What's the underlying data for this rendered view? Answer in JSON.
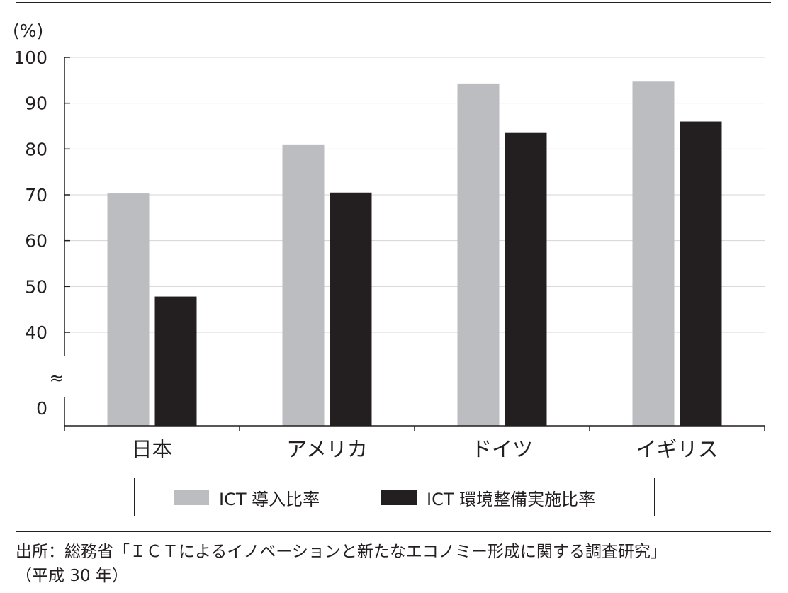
{
  "chart_data": {
    "type": "bar",
    "unit_label": "(%)",
    "categories": [
      "日本",
      "アメリカ",
      "ドイツ",
      "イギリス"
    ],
    "series": [
      {
        "name": "ICT 導入比率",
        "color": "#bcbdc0",
        "values": [
          70.3,
          81.0,
          94.3,
          94.7
        ]
      },
      {
        "name": "ICT 環境整備実施比率",
        "color": "#231f20",
        "values": [
          47.8,
          70.5,
          83.5,
          86.0
        ]
      }
    ],
    "yticks": [
      0,
      40,
      50,
      60,
      70,
      80,
      90,
      100
    ],
    "ylim": [
      0,
      100
    ],
    "axis_break": {
      "from": 0,
      "to": 40,
      "symbol": "≈"
    },
    "grid": true,
    "legend": "bottom"
  },
  "source": {
    "line1": "出所：総務省「ＩＣＴによるイノベーションと新たなエコノミー形成に関する調査研究」",
    "line2": "（平成 30 年）"
  }
}
